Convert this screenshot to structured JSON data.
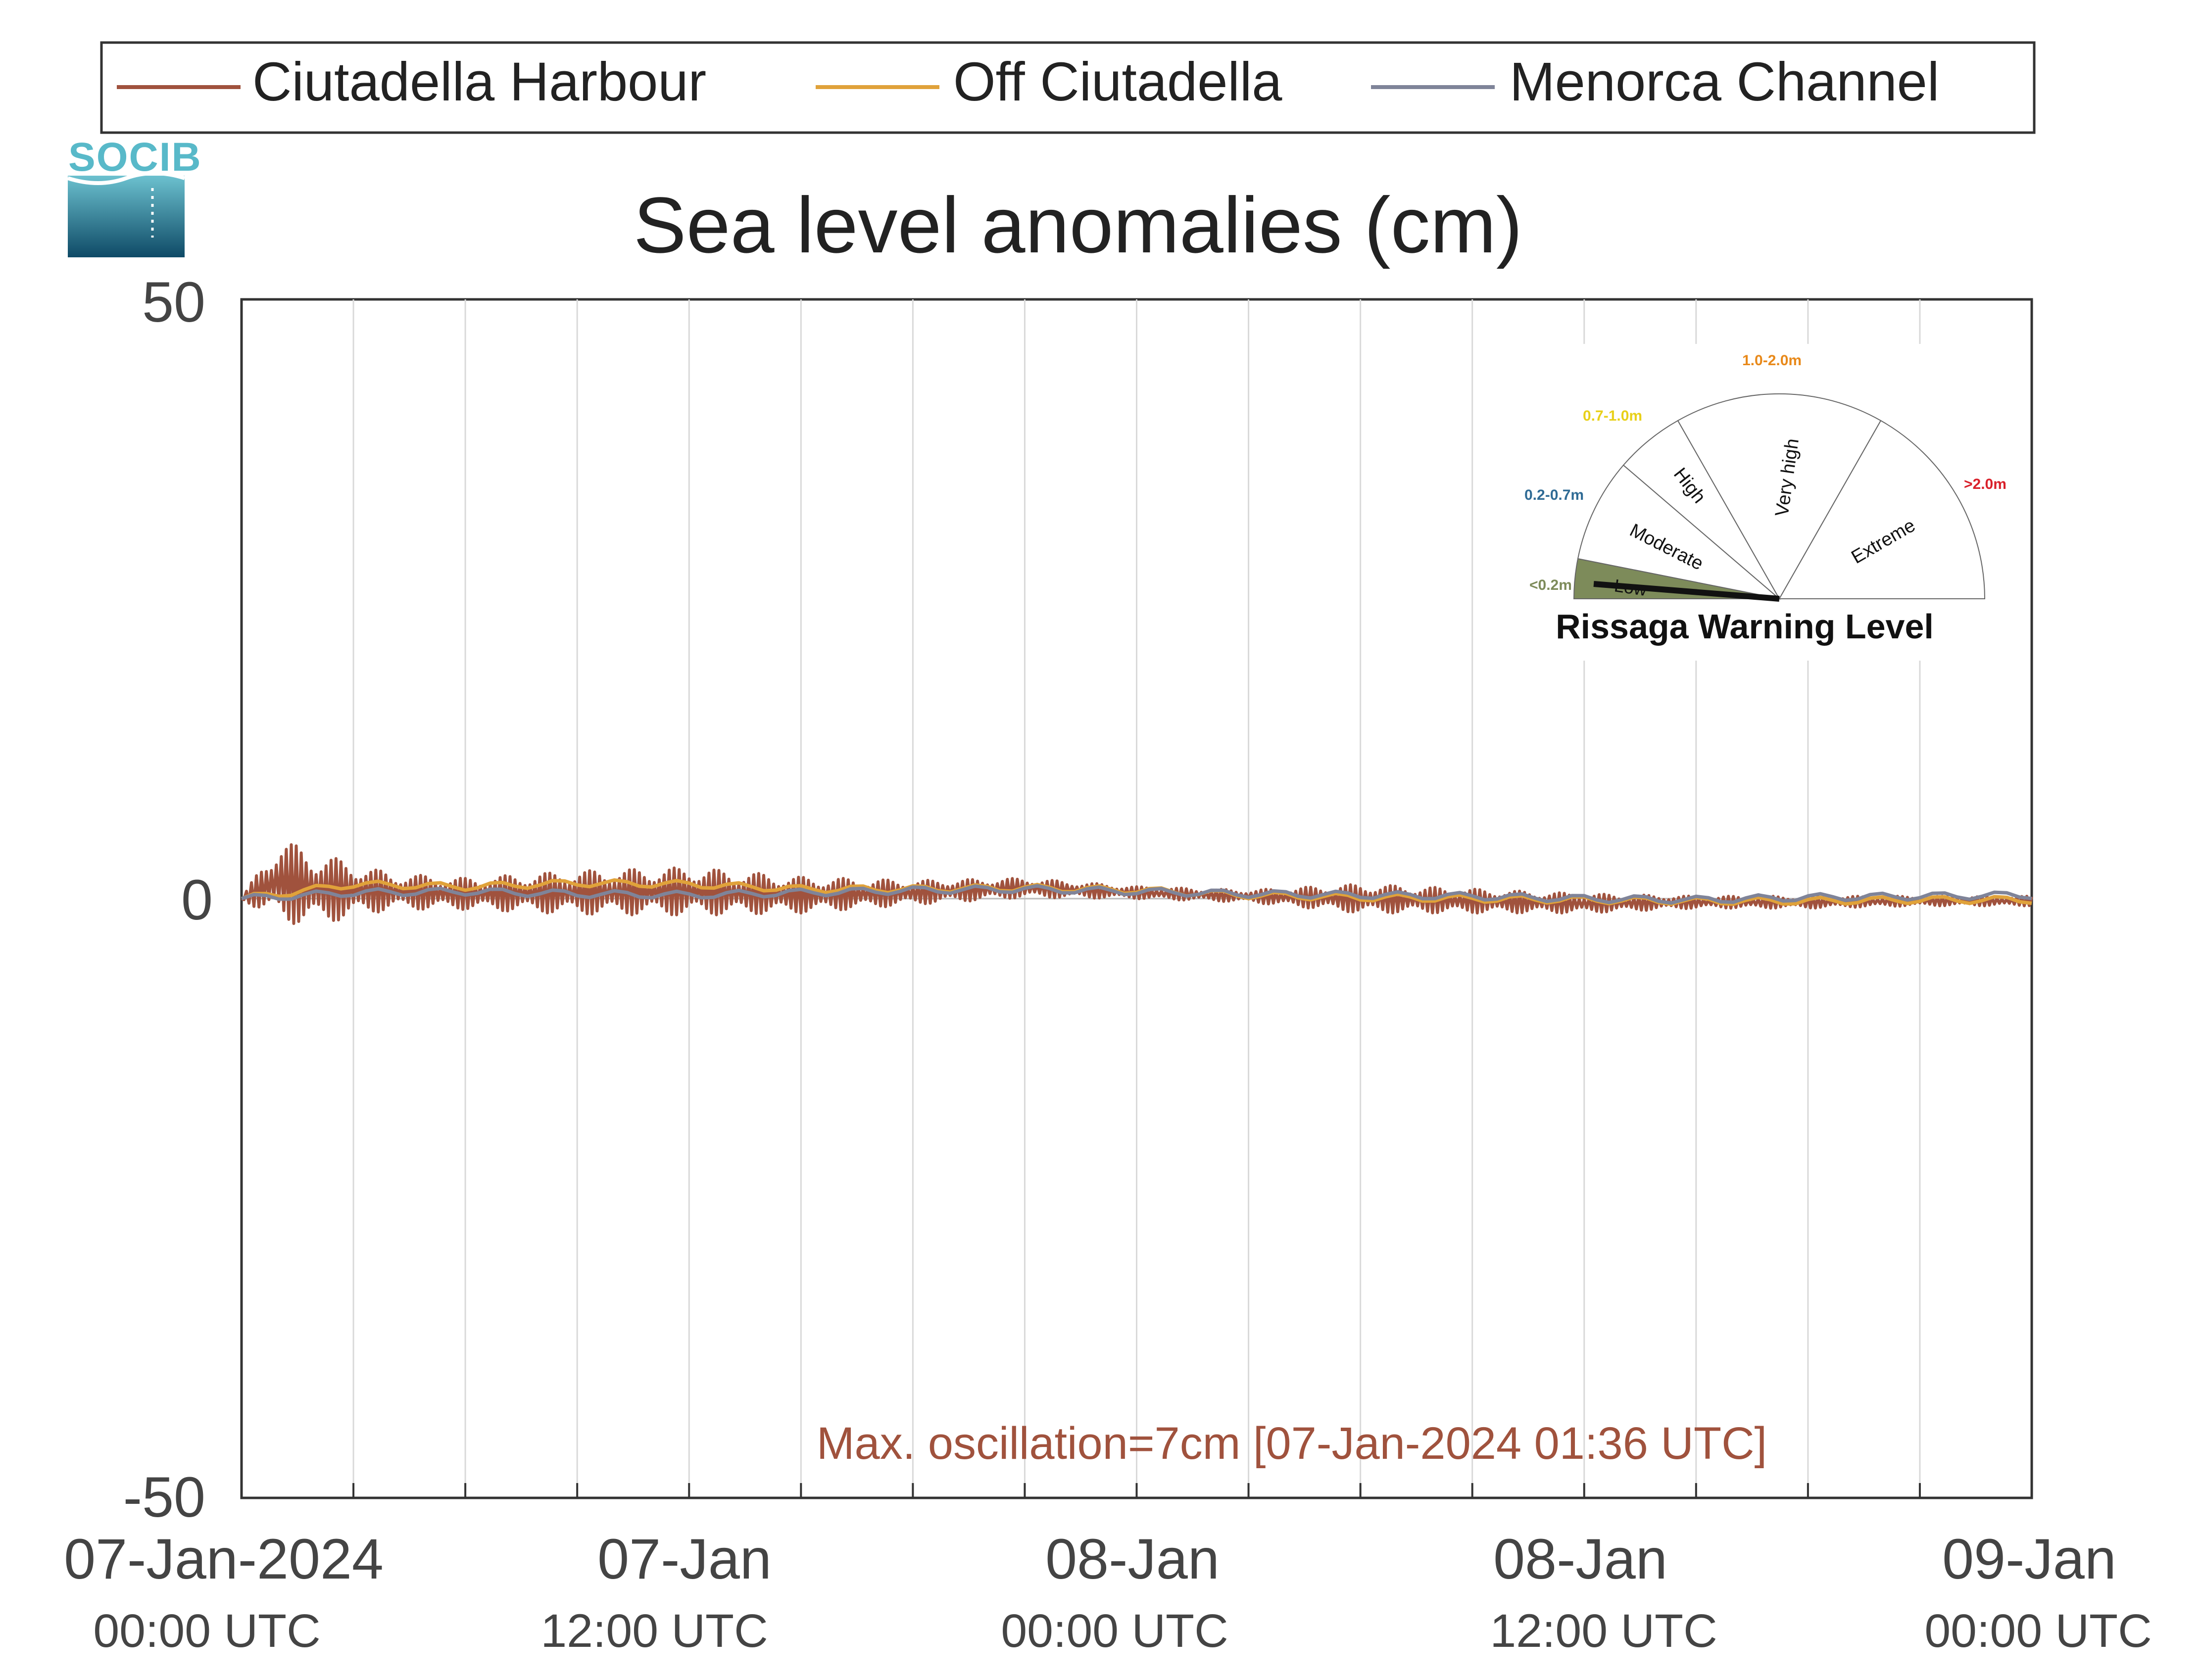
{
  "legend": {
    "entries": [
      {
        "label": "Ciutadella Harbour",
        "color": "#a0523d"
      },
      {
        "label": "Off Ciutadella",
        "color": "#e0a23a"
      },
      {
        "label": "Menorca Channel",
        "color": "#7f8499"
      }
    ]
  },
  "logo": {
    "text": "SOCIB"
  },
  "chart_data": {
    "type": "line",
    "title": "Sea level anomalies (cm)",
    "xlabel": "",
    "ylabel": "",
    "ylim": [
      -50,
      50
    ],
    "yticks": [
      "50",
      "0",
      "-50"
    ],
    "xlim": [
      "2024-01-07 00:00",
      "2024-01-09 00:00"
    ],
    "xtick_labels": [
      {
        "date": "07-Jan-2024",
        "time": "00:00 UTC"
      },
      {
        "date": "07-Jan",
        "time": "12:00 UTC"
      },
      {
        "date": "08-Jan",
        "time": "00:00 UTC"
      },
      {
        "date": "08-Jan",
        "time": "12:00 UTC"
      },
      {
        "date": "09-Jan",
        "time": "00:00 UTC"
      }
    ],
    "grid": "vertical, every 3 hours",
    "series": [
      {
        "name": "Ciutadella Harbour",
        "color": "#a0523d",
        "x": [
          "2024-01-07 00:00",
          "2024-01-07 01:00",
          "2024-01-07 02:00",
          "2024-01-07 04:00",
          "2024-01-07 06:00",
          "2024-01-07 09:00",
          "2024-01-07 12:00",
          "2024-01-07 15:00",
          "2024-01-07 18:00",
          "2024-01-07 21:00",
          "2024-01-08 00:00",
          "2024-01-08 03:00",
          "2024-01-08 06:00",
          "2024-01-08 09:00",
          "2024-01-08 12:00",
          "2024-01-08 15:00",
          "2024-01-08 18:00",
          "2024-01-08 21:00",
          "2024-01-09 00:00"
        ],
        "y": [
          0.0,
          1.5,
          0.8,
          0.6,
          0.4,
          0.5,
          0.6,
          0.3,
          0.5,
          0.9,
          0.5,
          0.2,
          0.0,
          -0.2,
          -0.4,
          -0.3,
          -0.3,
          -0.2,
          -0.2
        ],
        "oscillation_amplitude": [
          0.0,
          3.5,
          3.0,
          1.5,
          1.3,
          1.8,
          2.0,
          1.5,
          1.0,
          0.8,
          0.5,
          0.5,
          1.2,
          1.0,
          0.8,
          0.5,
          0.5,
          0.4,
          0.4
        ]
      },
      {
        "name": "Off Ciutadella",
        "color": "#e0a23a",
        "x": [
          "2024-01-07 00:00",
          "2024-01-07 03:00",
          "2024-01-07 06:00",
          "2024-01-07 09:00",
          "2024-01-07 12:00",
          "2024-01-07 15:00",
          "2024-01-07 18:00",
          "2024-01-07 21:00",
          "2024-01-08 00:00",
          "2024-01-08 03:00",
          "2024-01-08 06:00",
          "2024-01-08 09:00",
          "2024-01-08 12:00",
          "2024-01-08 15:00",
          "2024-01-08 18:00",
          "2024-01-08 21:00",
          "2024-01-09 00:00"
        ],
        "y": [
          0.0,
          1.2,
          1.0,
          1.3,
          1.2,
          0.8,
          0.8,
          0.9,
          0.7,
          0.3,
          0.1,
          0.0,
          -0.1,
          -0.2,
          -0.2,
          -0.1,
          -0.1
        ]
      },
      {
        "name": "Menorca Channel",
        "color": "#7f8499",
        "x": [
          "2024-01-07 00:00",
          "2024-01-07 03:00",
          "2024-01-07 06:00",
          "2024-01-07 09:00",
          "2024-01-07 12:00",
          "2024-01-07 15:00",
          "2024-01-07 18:00",
          "2024-01-07 21:00",
          "2024-01-08 00:00",
          "2024-01-08 03:00",
          "2024-01-08 06:00",
          "2024-01-08 09:00",
          "2024-01-08 12:00",
          "2024-01-08 15:00",
          "2024-01-08 18:00",
          "2024-01-08 21:00",
          "2024-01-09 00:00"
        ],
        "y": [
          0.0,
          0.5,
          0.6,
          0.4,
          0.3,
          0.5,
          0.7,
          0.8,
          0.6,
          0.4,
          0.3,
          0.2,
          0.0,
          -0.1,
          0.1,
          0.2,
          0.3
        ]
      }
    ],
    "annotation": {
      "text": "Max. oscillation=7cm [07-Jan-2024 01:36 UTC]",
      "color": "#a0523d"
    }
  },
  "gauge": {
    "title": "Rissaga Warning Level",
    "current_level": "Low",
    "sectors": [
      {
        "name": "Low",
        "range": "<0.2m",
        "color": "#7d8b5a"
      },
      {
        "name": "Moderate",
        "range": "0.2-0.7m",
        "color": "#2f6b95"
      },
      {
        "name": "High",
        "range": "0.7-1.0m",
        "color": "#e8d019"
      },
      {
        "name": "Very high",
        "range": "1.0-2.0m",
        "color": "#e8891a"
      },
      {
        "name": "Extreme",
        "range": ">2.0m",
        "color": "#d9202a"
      }
    ]
  }
}
